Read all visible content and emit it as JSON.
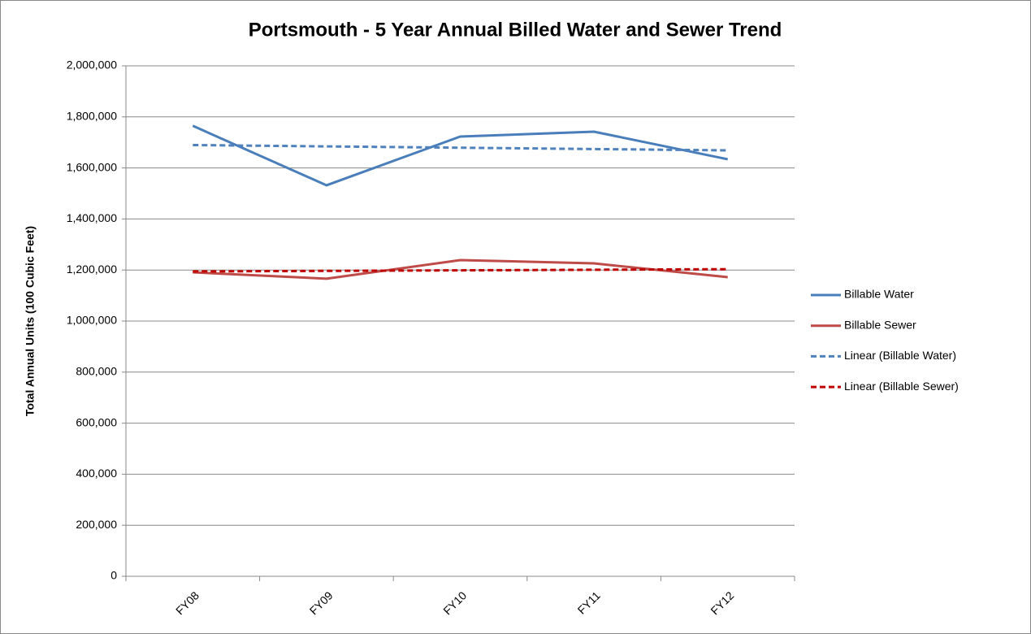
{
  "chart_data": {
    "type": "line",
    "title": "Portsmouth - 5 Year Annual Billed Water and Sewer Trend",
    "y_label": "Total Annual Units (100 Cubic Feet)",
    "categories": [
      "FY08",
      "FY09",
      "FY10",
      "FY11",
      "FY12"
    ],
    "series": [
      {
        "name": "Billable Water",
        "color": "#4a7ebb",
        "dashed": false,
        "values": [
          1765000,
          1532000,
          1723000,
          1742000,
          1634000
        ]
      },
      {
        "name": "Billable Sewer",
        "color": "#be4b48",
        "dashed": false,
        "values": [
          1191000,
          1166000,
          1239000,
          1226000,
          1172000
        ]
      },
      {
        "name": "Linear (Billable Water)",
        "color": "#4f81bd",
        "dashed": true,
        "values": [
          1689600,
          1684400,
          1679200,
          1674000,
          1668800
        ]
      },
      {
        "name": "Linear (Billable Sewer)",
        "color": "#c00000",
        "dashed": true,
        "values": [
          1194400,
          1196600,
          1198800,
          1201000,
          1203200
        ]
      }
    ],
    "ylim": [
      0,
      2000000
    ],
    "yticks": [
      0,
      {
        "value": 200000,
        "label": "200,000"
      },
      {
        "value": 400000,
        "label": "400,000"
      },
      {
        "value": 600000,
        "label": "600,000"
      },
      {
        "value": 800000,
        "label": "800,000"
      },
      {
        "value": 1000000,
        "label": "1,000,000"
      },
      {
        "value": 1200000,
        "label": "1,200,000"
      },
      {
        "value": 1400000,
        "label": "1,400,000"
      },
      {
        "value": 1600000,
        "label": "1,600,000"
      },
      {
        "value": 1800000,
        "label": "1,800,000"
      },
      {
        "value": 2000000,
        "label": "2,000,000"
      }
    ],
    "grid": true,
    "legend": "right"
  }
}
